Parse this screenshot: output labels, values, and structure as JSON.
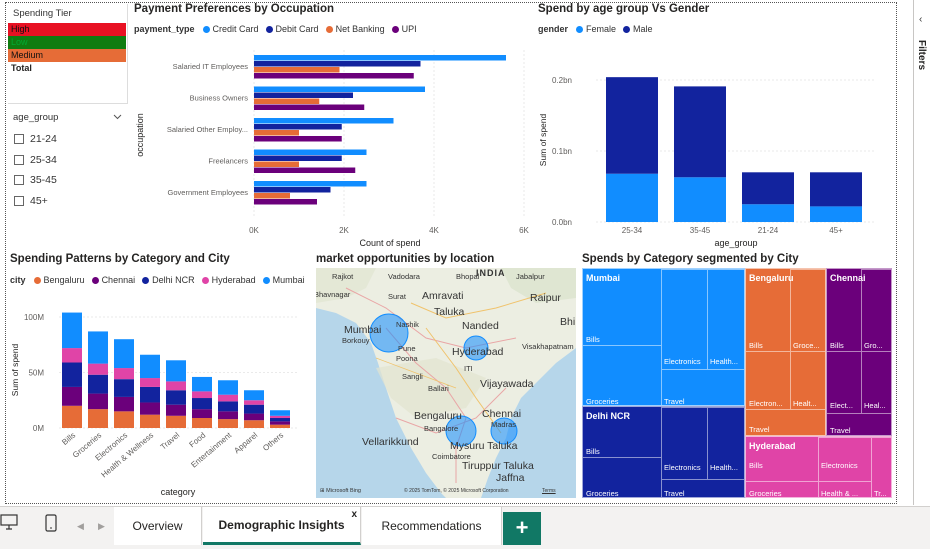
{
  "spending_tier": {
    "title": "Spending Tier",
    "rows": [
      {
        "label": "High",
        "color": "#e81123"
      },
      {
        "label": "Low",
        "color": "#107c10"
      },
      {
        "label": "Medium",
        "color": "#e66c37"
      },
      {
        "label": "Total",
        "color": "#ffffff"
      }
    ]
  },
  "age_slicer": {
    "title": "age_group",
    "items": [
      "21-24",
      "25-34",
      "35-45",
      "45+"
    ]
  },
  "payment_chart": {
    "title": "Payment Preferences by Occupation",
    "legend_title": "payment_type",
    "xlabel": "Count of spend",
    "ylabel": "occupation",
    "ticks": [
      "0K",
      "2K",
      "4K",
      "6K"
    ]
  },
  "age_gender_chart": {
    "title": "Spend by age group Vs Gender",
    "legend_title": "gender",
    "xlabel": "age_group",
    "ylabel": "Sum of spend",
    "ticks": [
      "0.0bn",
      "0.1bn",
      "0.2bn"
    ]
  },
  "category_city_chart": {
    "title": "Spending Patterns by Category and City",
    "legend_title": "city",
    "xlabel": "category",
    "ylabel": "Sum of spend",
    "ticks": [
      "0M",
      "50M",
      "100M"
    ]
  },
  "map": {
    "title": "market opportunities by location",
    "labels": [
      "Rajkot",
      "Vadodara",
      "Bhopal",
      "Jabalpur",
      "Bhavnagar",
      "Surat",
      "Amravati",
      "Raipur",
      "Mumbai",
      "Nashik",
      "Taluka",
      "Nanded",
      "Bhi",
      "Pune",
      "Poona",
      "Hyderabad",
      "Visakhapatnam",
      "Sangli",
      "Ballari",
      "Vijayawada",
      "Bengaluru",
      "Chennai",
      "Bangalore",
      "Madras",
      "Vellarikkund",
      "Mysuru Taluka",
      "Coimbatore",
      "Tiruppur Taluka",
      "Jaffna",
      "INDIA",
      "Borkouy",
      "ITI"
    ],
    "attribution": "© 2025 TomTom, © 2025 Microsoft Corporation",
    "terms": "Terms",
    "brand": "Microsoft Bing"
  },
  "treemap": {
    "title": "Spends by Category segmented by City",
    "cities": [
      "Mumbai",
      "Bengaluru",
      "Chennai",
      "Delhi NCR",
      "Hyderabad"
    ],
    "labels": {
      "bills": "Bills",
      "groceries": "Groceries",
      "electronics": "Electronics",
      "health": "Health...",
      "travel": "Travel",
      "groce_short": "Groce...",
      "gro_short": "Gro...",
      "electron_short": "Electron...",
      "health_short": "Healt...",
      "elect_short": "Elect...",
      "heal_short": "Heal...",
      "health_amp": "Health & ...",
      "tr_short": "Tr..."
    }
  },
  "tabs": [
    "Overview",
    "Demographic Insights",
    "Recommendations"
  ],
  "active_tab_close": "x",
  "add_tab": "+",
  "side_panel": {
    "label": "Filters",
    "chevron": "‹"
  },
  "colors": {
    "credit_card": "#118dff",
    "debit_card": "#12239e",
    "net_banking": "#e66c37",
    "upi": "#6b007b",
    "female": "#118dff",
    "male": "#12239e",
    "bengaluru": "#e66c37",
    "chennai": "#6b007b",
    "delhi_ncr": "#12239e",
    "hyderabad": "#e044a7",
    "mumbai": "#118dff"
  },
  "chart_data": [
    {
      "type": "bar",
      "orientation": "horizontal",
      "title": "Payment Preferences by Occupation",
      "xlabel": "Count of spend",
      "ylabel": "occupation",
      "xlim": [
        0,
        6000
      ],
      "categories": [
        "Salaried IT Employees",
        "Business Owners",
        "Salaried Other Employ...",
        "Freelancers",
        "Government Employees"
      ],
      "series": [
        {
          "name": "Credit Card",
          "values": [
            5600,
            3800,
            3100,
            2500,
            2500
          ]
        },
        {
          "name": "Debit Card",
          "values": [
            3700,
            2200,
            1950,
            1950,
            1700
          ]
        },
        {
          "name": "Net Banking",
          "values": [
            1900,
            1450,
            1000,
            1000,
            800
          ]
        },
        {
          "name": "UPI",
          "values": [
            3550,
            2450,
            1950,
            2250,
            1400
          ]
        }
      ],
      "legend": "top"
    },
    {
      "type": "bar",
      "stacked": true,
      "title": "Spend by age group Vs Gender",
      "xlabel": "age_group",
      "ylabel": "Sum of spend",
      "ylim": [
        0,
        0.2
      ],
      "categories": [
        "25-34",
        "35-45",
        "21-24",
        "45+"
      ],
      "series": [
        {
          "name": "Female",
          "values": [
            0.068,
            0.063,
            0.025,
            0.022
          ]
        },
        {
          "name": "Male",
          "values": [
            0.136,
            0.128,
            0.045,
            0.048
          ]
        }
      ],
      "legend": "top"
    },
    {
      "type": "bar",
      "stacked": true,
      "title": "Spending Patterns by Category and City",
      "xlabel": "category",
      "ylabel": "Sum of spend",
      "ylim": [
        0,
        100
      ],
      "categories": [
        "Bills",
        "Groceries",
        "Electronics",
        "Health & Wellness",
        "Travel",
        "Food",
        "Entertainment",
        "Apparel",
        "Others"
      ],
      "series": [
        {
          "name": "Bengaluru",
          "values": [
            20,
            17,
            15,
            12,
            11,
            9,
            8,
            7,
            3
          ]
        },
        {
          "name": "Chennai",
          "values": [
            17,
            14,
            13,
            11,
            10,
            8,
            7,
            6,
            3
          ]
        },
        {
          "name": "Delhi NCR",
          "values": [
            22,
            17,
            16,
            14,
            13,
            10,
            9,
            8,
            3
          ]
        },
        {
          "name": "Hyderabad",
          "values": [
            13,
            10,
            10,
            8,
            8,
            6,
            6,
            4,
            2
          ]
        },
        {
          "name": "Mumbai",
          "values": [
            32,
            29,
            26,
            21,
            19,
            13,
            13,
            9,
            5
          ]
        }
      ],
      "legend": "top"
    }
  ]
}
